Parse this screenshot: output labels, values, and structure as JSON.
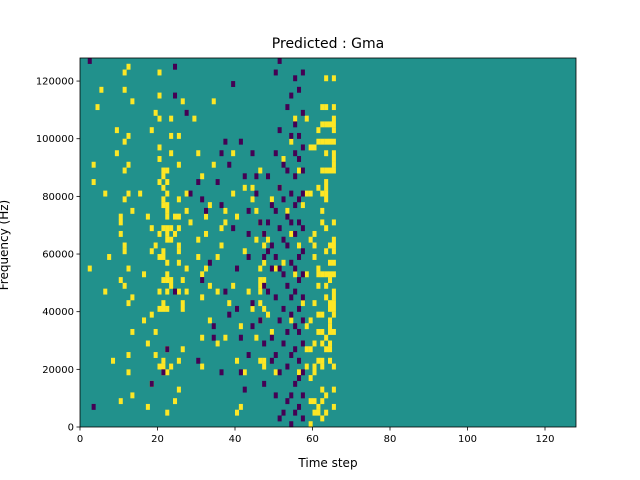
{
  "chart_data": {
    "type": "heatmap",
    "title": "Predicted : Gma",
    "xlabel": "Time step",
    "ylabel": "Frequency (Hz)",
    "xlim": [
      0,
      128
    ],
    "ylim": [
      0,
      128000
    ],
    "x_ticks": [
      0,
      20,
      40,
      60,
      80,
      100,
      120
    ],
    "y_ticks": [
      0,
      20000,
      40000,
      60000,
      80000,
      100000,
      120000
    ],
    "x_tick_labels": [
      "0",
      "20",
      "40",
      "60",
      "80",
      "100",
      "120"
    ],
    "y_tick_labels": [
      "0",
      "20000",
      "40000",
      "60000",
      "80000",
      "100000",
      "120000"
    ],
    "n_time_steps": 128,
    "n_freq_bins": 64,
    "bin_width_hz": 2000,
    "values_legend": {
      "low": -1,
      "mid": 0,
      "high": 1
    },
    "colors": {
      "low": "#440154",
      "mid": "#21918c",
      "high": "#fde725"
    },
    "background_value": 0,
    "cells_high": [
      [
        2,
        27
      ],
      [
        3,
        42
      ],
      [
        3,
        45
      ],
      [
        4,
        55
      ],
      [
        5,
        58
      ],
      [
        6,
        23
      ],
      [
        6,
        40
      ],
      [
        7,
        29
      ],
      [
        8,
        11
      ],
      [
        9,
        47
      ],
      [
        9,
        51
      ],
      [
        10,
        4
      ],
      [
        10,
        25
      ],
      [
        10,
        33
      ],
      [
        10,
        35
      ],
      [
        10,
        36
      ],
      [
        11,
        24
      ],
      [
        11,
        30
      ],
      [
        11,
        31
      ],
      [
        11,
        39
      ],
      [
        11,
        44
      ],
      [
        11,
        49
      ],
      [
        11,
        58
      ],
      [
        11,
        61
      ],
      [
        12,
        9
      ],
      [
        12,
        12
      ],
      [
        12,
        21
      ],
      [
        12,
        27
      ],
      [
        12,
        40
      ],
      [
        12,
        45
      ],
      [
        12,
        50
      ],
      [
        12,
        62
      ],
      [
        13,
        5
      ],
      [
        13,
        16
      ],
      [
        13,
        22
      ],
      [
        13,
        37
      ],
      [
        13,
        56
      ],
      [
        15,
        40
      ],
      [
        16,
        18
      ],
      [
        16,
        26
      ],
      [
        17,
        3
      ],
      [
        17,
        14
      ],
      [
        17,
        36
      ],
      [
        18,
        7
      ],
      [
        18,
        19
      ],
      [
        18,
        30
      ],
      [
        18,
        34
      ],
      [
        18,
        51
      ],
      [
        19,
        12
      ],
      [
        19,
        16
      ],
      [
        19,
        31
      ],
      [
        19,
        54
      ],
      [
        20,
        10
      ],
      [
        20,
        20
      ],
      [
        20,
        23
      ],
      [
        20,
        29
      ],
      [
        20,
        33
      ],
      [
        20,
        42
      ],
      [
        20,
        46
      ],
      [
        20,
        48
      ],
      [
        20,
        53
      ],
      [
        20,
        57
      ],
      [
        20,
        61
      ],
      [
        21,
        9
      ],
      [
        21,
        10
      ],
      [
        21,
        11
      ],
      [
        21,
        20
      ],
      [
        21,
        21
      ],
      [
        21,
        25
      ],
      [
        21,
        29
      ],
      [
        21,
        30
      ],
      [
        21,
        34
      ],
      [
        21,
        38
      ],
      [
        21,
        39
      ],
      [
        21,
        41
      ],
      [
        21,
        43
      ],
      [
        21,
        44
      ],
      [
        22,
        2
      ],
      [
        22,
        9
      ],
      [
        22,
        13
      ],
      [
        22,
        20
      ],
      [
        22,
        23
      ],
      [
        22,
        25
      ],
      [
        22,
        26
      ],
      [
        22,
        28
      ],
      [
        22,
        32
      ],
      [
        22,
        33
      ],
      [
        22,
        34
      ],
      [
        22,
        36
      ],
      [
        22,
        37
      ],
      [
        22,
        38
      ],
      [
        22,
        40
      ],
      [
        22,
        42
      ],
      [
        22,
        44
      ],
      [
        23,
        10
      ],
      [
        23,
        24
      ],
      [
        23,
        25
      ],
      [
        23,
        32
      ],
      [
        23,
        34
      ],
      [
        23,
        47
      ],
      [
        23,
        50
      ],
      [
        23,
        53
      ],
      [
        24,
        4
      ],
      [
        24,
        33
      ],
      [
        24,
        36
      ],
      [
        25,
        6
      ],
      [
        25,
        11
      ],
      [
        25,
        23
      ],
      [
        25,
        28
      ],
      [
        25,
        30
      ],
      [
        25,
        31
      ],
      [
        25,
        34
      ],
      [
        25,
        36
      ],
      [
        25,
        39
      ],
      [
        25,
        45
      ],
      [
        25,
        50
      ],
      [
        26,
        13
      ],
      [
        26,
        20
      ],
      [
        26,
        21
      ],
      [
        26,
        25
      ],
      [
        26,
        56
      ],
      [
        27,
        23
      ],
      [
        27,
        27
      ],
      [
        27,
        37
      ],
      [
        27,
        40
      ],
      [
        28,
        35
      ],
      [
        29,
        53
      ],
      [
        30,
        29
      ],
      [
        30,
        32
      ],
      [
        30,
        47
      ],
      [
        31,
        10
      ],
      [
        31,
        15
      ],
      [
        31,
        22
      ],
      [
        31,
        26
      ],
      [
        31,
        43
      ],
      [
        32,
        27
      ],
      [
        32,
        33
      ],
      [
        32,
        36
      ],
      [
        33,
        18
      ],
      [
        33,
        24
      ],
      [
        33,
        38
      ],
      [
        34,
        45
      ],
      [
        34,
        56
      ],
      [
        35,
        14
      ],
      [
        35,
        23
      ],
      [
        35,
        29
      ],
      [
        36,
        31
      ],
      [
        36,
        34
      ],
      [
        37,
        15
      ],
      [
        37,
        35
      ],
      [
        37,
        37
      ],
      [
        38,
        21
      ],
      [
        39,
        24
      ],
      [
        39,
        40
      ],
      [
        39,
        47
      ],
      [
        40,
        2
      ],
      [
        40,
        11
      ],
      [
        40,
        36
      ],
      [
        41,
        3
      ],
      [
        41,
        17
      ],
      [
        42,
        9
      ],
      [
        42,
        30
      ],
      [
        42,
        41
      ],
      [
        43,
        23
      ],
      [
        44,
        20
      ],
      [
        44,
        39
      ],
      [
        44,
        41
      ],
      [
        45,
        15
      ],
      [
        45,
        32
      ],
      [
        45,
        37
      ],
      [
        46,
        11
      ],
      [
        46,
        18
      ],
      [
        46,
        21
      ],
      [
        46,
        23
      ],
      [
        46,
        24
      ],
      [
        46,
        25
      ],
      [
        46,
        27
      ],
      [
        46,
        35
      ],
      [
        46,
        44
      ],
      [
        47,
        10
      ],
      [
        47,
        11
      ],
      [
        47,
        20
      ],
      [
        47,
        24
      ],
      [
        47,
        25
      ],
      [
        47,
        28
      ],
      [
        47,
        31
      ],
      [
        47,
        33
      ],
      [
        48,
        19
      ],
      [
        48,
        32
      ],
      [
        49,
        16
      ],
      [
        49,
        39
      ],
      [
        50,
        9
      ],
      [
        50,
        27
      ],
      [
        51,
        41
      ],
      [
        52,
        28
      ],
      [
        52,
        46
      ],
      [
        53,
        37
      ],
      [
        54,
        18
      ],
      [
        54,
        33
      ],
      [
        54,
        49
      ],
      [
        55,
        26
      ],
      [
        55,
        53
      ],
      [
        56,
        9
      ],
      [
        56,
        31
      ],
      [
        56,
        44
      ],
      [
        57,
        21
      ],
      [
        57,
        38
      ],
      [
        58,
        10
      ],
      [
        58,
        13
      ],
      [
        58,
        17
      ],
      [
        58,
        26
      ],
      [
        58,
        40
      ],
      [
        58,
        53
      ],
      [
        59,
        0
      ],
      [
        59,
        4
      ],
      [
        59,
        8
      ],
      [
        59,
        13
      ],
      [
        59,
        18
      ],
      [
        59,
        32
      ],
      [
        59,
        40
      ],
      [
        59,
        48
      ],
      [
        60,
        2
      ],
      [
        60,
        4
      ],
      [
        60,
        9
      ],
      [
        60,
        10
      ],
      [
        60,
        14
      ],
      [
        60,
        21
      ],
      [
        60,
        29
      ],
      [
        60,
        31
      ],
      [
        60,
        33
      ],
      [
        60,
        48
      ],
      [
        61,
        2
      ],
      [
        61,
        3
      ],
      [
        61,
        11
      ],
      [
        61,
        16
      ],
      [
        61,
        19
      ],
      [
        61,
        24
      ],
      [
        61,
        26
      ],
      [
        61,
        27
      ],
      [
        61,
        41
      ],
      [
        61,
        49
      ],
      [
        61,
        51
      ],
      [
        62,
        1
      ],
      [
        62,
        4
      ],
      [
        62,
        6
      ],
      [
        62,
        10
      ],
      [
        62,
        11
      ],
      [
        62,
        14
      ],
      [
        62,
        16
      ],
      [
        62,
        19
      ],
      [
        62,
        26
      ],
      [
        62,
        35
      ],
      [
        62,
        37
      ],
      [
        62,
        40
      ],
      [
        62,
        44
      ],
      [
        62,
        49
      ],
      [
        62,
        52
      ],
      [
        62,
        55
      ],
      [
        63,
        2
      ],
      [
        63,
        5
      ],
      [
        63,
        13
      ],
      [
        63,
        15
      ],
      [
        63,
        22
      ],
      [
        63,
        24
      ],
      [
        63,
        26
      ],
      [
        63,
        30
      ],
      [
        63,
        34
      ],
      [
        63,
        39
      ],
      [
        63,
        40
      ],
      [
        63,
        41
      ],
      [
        63,
        42
      ],
      [
        63,
        44
      ],
      [
        63,
        47
      ],
      [
        63,
        49
      ],
      [
        63,
        52
      ],
      [
        63,
        55
      ],
      [
        63,
        60
      ],
      [
        64,
        11
      ],
      [
        64,
        13
      ],
      [
        64,
        14
      ],
      [
        64,
        16
      ],
      [
        64,
        17
      ],
      [
        64,
        18
      ],
      [
        64,
        20
      ],
      [
        64,
        21
      ],
      [
        64,
        25
      ],
      [
        64,
        26
      ],
      [
        64,
        28
      ],
      [
        64,
        31
      ],
      [
        64,
        44
      ],
      [
        64,
        49
      ],
      [
        64,
        52
      ],
      [
        65,
        3
      ],
      [
        65,
        6
      ],
      [
        65,
        10
      ],
      [
        65,
        16
      ],
      [
        65,
        19
      ],
      [
        65,
        20
      ],
      [
        65,
        21
      ],
      [
        65,
        22
      ],
      [
        65,
        23
      ],
      [
        65,
        26
      ],
      [
        65,
        28
      ],
      [
        65,
        30
      ],
      [
        65,
        31
      ],
      [
        65,
        32
      ],
      [
        65,
        35
      ],
      [
        65,
        44
      ],
      [
        65,
        45
      ],
      [
        65,
        46
      ],
      [
        65,
        47
      ],
      [
        65,
        49
      ],
      [
        65,
        51
      ],
      [
        65,
        52
      ],
      [
        65,
        53
      ],
      [
        65,
        55
      ],
      [
        65,
        60
      ]
    ],
    "cells_low": [
      [
        2,
        63
      ],
      [
        3,
        3
      ],
      [
        18,
        7
      ],
      [
        21,
        9
      ],
      [
        22,
        13
      ],
      [
        24,
        23
      ],
      [
        24,
        57
      ],
      [
        24,
        62
      ],
      [
        27,
        54
      ],
      [
        28,
        40
      ],
      [
        30,
        11
      ],
      [
        30,
        42
      ],
      [
        31,
        25
      ],
      [
        31,
        39
      ],
      [
        32,
        37
      ],
      [
        33,
        28
      ],
      [
        34,
        15
      ],
      [
        34,
        17
      ],
      [
        35,
        42
      ],
      [
        36,
        9
      ],
      [
        36,
        38
      ],
      [
        36,
        47
      ],
      [
        37,
        23
      ],
      [
        37,
        49
      ],
      [
        38,
        19
      ],
      [
        38,
        45
      ],
      [
        39,
        34
      ],
      [
        39,
        59
      ],
      [
        40,
        20
      ],
      [
        40,
        27
      ],
      [
        41,
        9
      ],
      [
        41,
        15
      ],
      [
        41,
        49
      ],
      [
        42,
        6
      ],
      [
        42,
        43
      ],
      [
        43,
        12
      ],
      [
        43,
        29
      ],
      [
        43,
        33
      ],
      [
        43,
        37
      ],
      [
        44,
        17
      ],
      [
        44,
        21
      ],
      [
        44,
        47
      ],
      [
        45,
        40
      ],
      [
        45,
        43
      ],
      [
        46,
        18
      ],
      [
        46,
        35
      ],
      [
        47,
        7
      ],
      [
        47,
        14
      ],
      [
        47,
        24
      ],
      [
        47,
        29
      ],
      [
        47,
        33
      ],
      [
        48,
        23
      ],
      [
        48,
        30
      ],
      [
        48,
        35
      ],
      [
        48,
        43
      ],
      [
        49,
        11
      ],
      [
        49,
        15
      ],
      [
        49,
        27
      ],
      [
        49,
        31
      ],
      [
        49,
        38
      ],
      [
        50,
        5
      ],
      [
        50,
        12
      ],
      [
        50,
        22
      ],
      [
        50,
        29
      ],
      [
        50,
        37
      ],
      [
        50,
        47
      ],
      [
        50,
        61
      ],
      [
        51,
        1
      ],
      [
        51,
        9
      ],
      [
        51,
        18
      ],
      [
        51,
        27
      ],
      [
        51,
        34
      ],
      [
        51,
        41
      ],
      [
        51,
        51
      ],
      [
        51,
        63
      ],
      [
        52,
        2
      ],
      [
        52,
        14
      ],
      [
        52,
        20
      ],
      [
        52,
        26
      ],
      [
        52,
        32
      ],
      [
        52,
        39
      ],
      [
        52,
        45
      ],
      [
        53,
        4
      ],
      [
        53,
        10
      ],
      [
        53,
        16
      ],
      [
        53,
        24
      ],
      [
        53,
        31
      ],
      [
        53,
        36
      ],
      [
        53,
        44
      ],
      [
        53,
        55
      ],
      [
        54,
        0
      ],
      [
        54,
        5
      ],
      [
        54,
        12
      ],
      [
        54,
        19
      ],
      [
        54,
        22
      ],
      [
        54,
        28
      ],
      [
        54,
        35
      ],
      [
        54,
        40
      ],
      [
        54,
        50
      ],
      [
        54,
        57
      ],
      [
        55,
        2
      ],
      [
        55,
        7
      ],
      [
        55,
        13
      ],
      [
        55,
        17
      ],
      [
        55,
        23
      ],
      [
        55,
        27
      ],
      [
        55,
        33
      ],
      [
        55,
        38
      ],
      [
        55,
        43
      ],
      [
        55,
        47
      ],
      [
        55,
        52
      ],
      [
        55,
        60
      ],
      [
        56,
        3
      ],
      [
        56,
        8
      ],
      [
        56,
        11
      ],
      [
        56,
        16
      ],
      [
        56,
        20
      ],
      [
        56,
        25
      ],
      [
        56,
        29
      ],
      [
        56,
        35
      ],
      [
        56,
        39
      ],
      [
        56,
        46
      ],
      [
        56,
        50
      ],
      [
        56,
        58
      ],
      [
        57,
        1
      ],
      [
        57,
        5
      ],
      [
        57,
        9
      ],
      [
        57,
        14
      ],
      [
        57,
        18
      ],
      [
        57,
        22
      ],
      [
        57,
        26
      ],
      [
        57,
        30
      ],
      [
        57,
        34
      ],
      [
        57,
        40
      ],
      [
        57,
        44
      ],
      [
        57,
        48
      ],
      [
        57,
        54
      ],
      [
        57,
        61
      ]
    ]
  }
}
